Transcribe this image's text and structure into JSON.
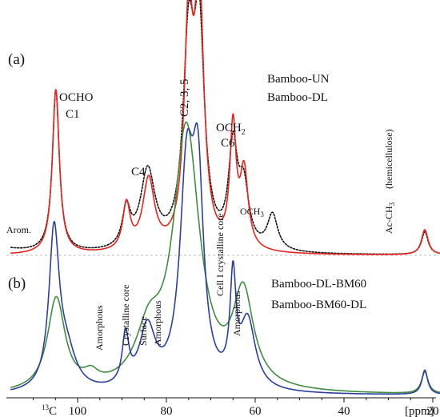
{
  "chart_data": {
    "type": "line",
    "xlabel": "[ppm]",
    "x_axis_prefix": "13C",
    "x_reversed": true,
    "xlim": [
      130,
      10
    ],
    "x_ticks": [
      100,
      80,
      60,
      40,
      20
    ],
    "panels": [
      {
        "label": "(a)",
        "series": [
          {
            "name": "Bamboo-UN",
            "color": "#111111",
            "style": "dotted",
            "peaks": [
              {
                "ppm": 104.9,
                "height": 0.64,
                "width": 0.95
              },
              {
                "ppm": 89.0,
                "height": 0.15,
                "width": 1.1
              },
              {
                "ppm": 84.2,
                "height": 0.31,
                "width": 2.0
              },
              {
                "ppm": 75.0,
                "height": 0.77,
                "width": 1.5
              },
              {
                "ppm": 72.6,
                "height": 0.8,
                "width": 1.4
              },
              {
                "ppm": 65.0,
                "height": 0.38,
                "width": 1.2
              },
              {
                "ppm": 62.6,
                "height": 0.23,
                "width": 1.4
              },
              {
                "ppm": 56.1,
                "height": 0.14,
                "width": 1.4
              },
              {
                "ppm": 21.8,
                "height": 0.09,
                "width": 0.9
              },
              {
                "ppm": 120.0,
                "height": 0.03,
                "width": 6.0
              },
              {
                "ppm": 145.0,
                "height": 0.06,
                "width": 8.0
              }
            ]
          },
          {
            "name": "Bamboo-DL",
            "color": "#e8231d",
            "style": "solid",
            "peaks": [
              {
                "ppm": 104.9,
                "height": 0.65,
                "width": 0.95
              },
              {
                "ppm": 89.0,
                "height": 0.18,
                "width": 1.0
              },
              {
                "ppm": 84.0,
                "height": 0.28,
                "width": 1.6
              },
              {
                "ppm": 75.0,
                "height": 0.85,
                "width": 1.2
              },
              {
                "ppm": 72.6,
                "height": 0.98,
                "width": 1.25
              },
              {
                "ppm": 65.0,
                "height": 0.47,
                "width": 0.85
              },
              {
                "ppm": 62.5,
                "height": 0.3,
                "width": 1.1
              },
              {
                "ppm": 21.8,
                "height": 0.1,
                "width": 0.9
              }
            ]
          }
        ]
      },
      {
        "label": "(b)",
        "series": [
          {
            "name": "Bamboo-DL-BM60",
            "color": "#3e8e3e",
            "style": "solid",
            "peaks": [
              {
                "ppm": 104.8,
                "height": 0.34,
                "width": 2.4
              },
              {
                "ppm": 97.0,
                "height": 0.04,
                "width": 2.0
              },
              {
                "ppm": 84.0,
                "height": 0.18,
                "width": 3.5
              },
              {
                "ppm": 75.5,
                "height": 0.96,
                "width": 3.6
              },
              {
                "ppm": 62.7,
                "height": 0.34,
                "width": 2.8
              },
              {
                "ppm": 21.8,
                "height": 0.08,
                "width": 0.9
              }
            ]
          },
          {
            "name": "Bamboo-BM60-DL",
            "color": "#2a3fa0",
            "style": "solid",
            "peaks": [
              {
                "ppm": 105.3,
                "height": 0.57,
                "width": 1.4
              },
              {
                "ppm": 102.5,
                "height": 0.13,
                "width": 2.6
              },
              {
                "ppm": 89.2,
                "height": 0.18,
                "width": 0.9
              },
              {
                "ppm": 84.3,
                "height": 0.22,
                "width": 2.2
              },
              {
                "ppm": 75.4,
                "height": 0.76,
                "width": 1.9
              },
              {
                "ppm": 72.9,
                "height": 0.68,
                "width": 1.5
              },
              {
                "ppm": 65.0,
                "height": 0.37,
                "width": 0.8
              },
              {
                "ppm": 61.7,
                "height": 0.25,
                "width": 2.1
              },
              {
                "ppm": 21.8,
                "height": 0.09,
                "width": 0.8
              }
            ]
          }
        ]
      }
    ],
    "annotations": {
      "panel_a": [
        "(a)",
        "OCHO",
        "C1",
        "C4",
        "C2, 3, 5",
        "OCH",
        "C6",
        "OCH",
        "Arom.",
        "Ac-CH",
        "(hemicellulose)"
      ],
      "panel_b": [
        "(b)",
        "Crystalline core",
        "Surface",
        "Amorphous",
        "Amorphous",
        "Cell I crystalline core",
        "Amorphous"
      ]
    }
  },
  "labels": {
    "panel_a": "(a)",
    "panel_b": "(b)",
    "ocho": "OCHO",
    "c1": "C1",
    "c4": "C4",
    "c235": "C2, 3, 5",
    "och2": "OCH",
    "och2_sub": "2",
    "c6": "C6",
    "och3": "OCH",
    "och3_sub": "3",
    "arom": "Arom.",
    "acch3": "Ac-CH",
    "acch3_sub": "3",
    "hemicellulose": "(hemicellulose)",
    "crystalline_core": "Crystalline core",
    "surface": "Surface",
    "amorphous_1": "Amorphous",
    "amorphous_2": "Amorphous",
    "amorphous_3": "Amorphous",
    "cell1": "Cell I crystalline core",
    "legend_un": "Bamboo-UN",
    "legend_dl": "Bamboo-DL",
    "legend_dlbm": "Bamboo-DL-BM60",
    "legend_bmdl": "Bamboo-BM60-DL",
    "xaxis_prefix_sup": "13",
    "xaxis_prefix": "C",
    "tick_100": "100",
    "tick_80": "80",
    "tick_60": "60",
    "tick_40": "40",
    "tick_20": "20",
    "xaxis_unit": "[ppm]"
  },
  "colors": {
    "un": "#111111",
    "dl": "#e8231d",
    "dlbm": "#3e8e3e",
    "bmdl": "#2a3fa0",
    "amorphous_text": "#3e8e3e",
    "baseline": "#bbbbbb"
  }
}
